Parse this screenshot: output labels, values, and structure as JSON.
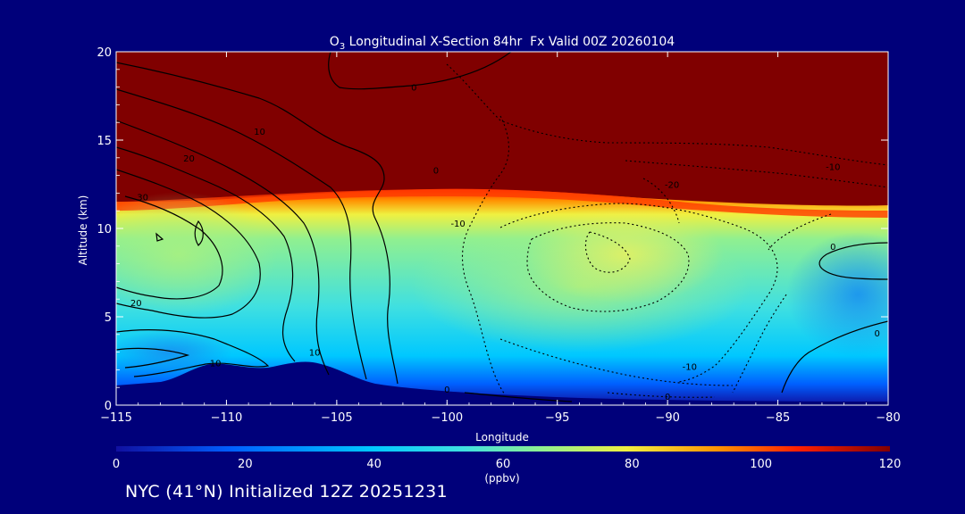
{
  "chart_data": {
    "type": "heatmap",
    "title_prefix": "O",
    "title_subscript": "3",
    "title_suffix": " Longitudinal X-Section 84hr  Fx Valid 00Z 20260104",
    "xlabel": "Longitude",
    "ylabel": "Altitude (km)",
    "xlim": [
      -115,
      -80
    ],
    "ylim": [
      0,
      20
    ],
    "xticks": [
      "-115",
      "-110",
      "-105",
      "-100",
      "-95",
      "-90",
      "-85",
      "-80"
    ],
    "yticks": [
      "0",
      "5",
      "10",
      "15",
      "20"
    ],
    "colorbar": {
      "min": 0,
      "max": 120,
      "ticks": [
        "0",
        "20",
        "40",
        "60",
        "80",
        "100",
        "120"
      ],
      "unit": "(ppbv)",
      "colors": [
        "#1010a0",
        "#0060ff",
        "#00c8ff",
        "#40e0e0",
        "#90f090",
        "#f0f040",
        "#ff9000",
        "#ff2000",
        "#800000"
      ]
    },
    "contour_labels": [
      {
        "text": "0",
        "lon": -101.5,
        "alt": 18.0
      },
      {
        "text": "10",
        "lon": -108.5,
        "alt": 15.5
      },
      {
        "text": "20",
        "lon": -111.7,
        "alt": 14.0
      },
      {
        "text": "30",
        "lon": -113.8,
        "alt": 11.8
      },
      {
        "text": "0",
        "lon": -100.5,
        "alt": 13.3
      },
      {
        "text": "-20",
        "lon": -89.8,
        "alt": 12.5
      },
      {
        "text": "-10",
        "lon": -82.5,
        "alt": 13.5
      },
      {
        "text": "-10",
        "lon": -99.5,
        "alt": 10.3
      },
      {
        "text": "0",
        "lon": -82.5,
        "alt": 9.0
      },
      {
        "text": "20",
        "lon": -114.1,
        "alt": 5.8
      },
      {
        "text": "10",
        "lon": -110.5,
        "alt": 2.4
      },
      {
        "text": "10",
        "lon": -106.0,
        "alt": 3.0
      },
      {
        "text": "0",
        "lon": -100.0,
        "alt": 0.9
      },
      {
        "text": "-10",
        "lon": -89.0,
        "alt": 2.2
      },
      {
        "text": "0",
        "lon": -90.0,
        "alt": 0.5
      },
      {
        "text": "0",
        "lon": -80.5,
        "alt": 4.1
      }
    ]
  },
  "footer": "NYC (41°N) Initialized 12Z 20251231"
}
